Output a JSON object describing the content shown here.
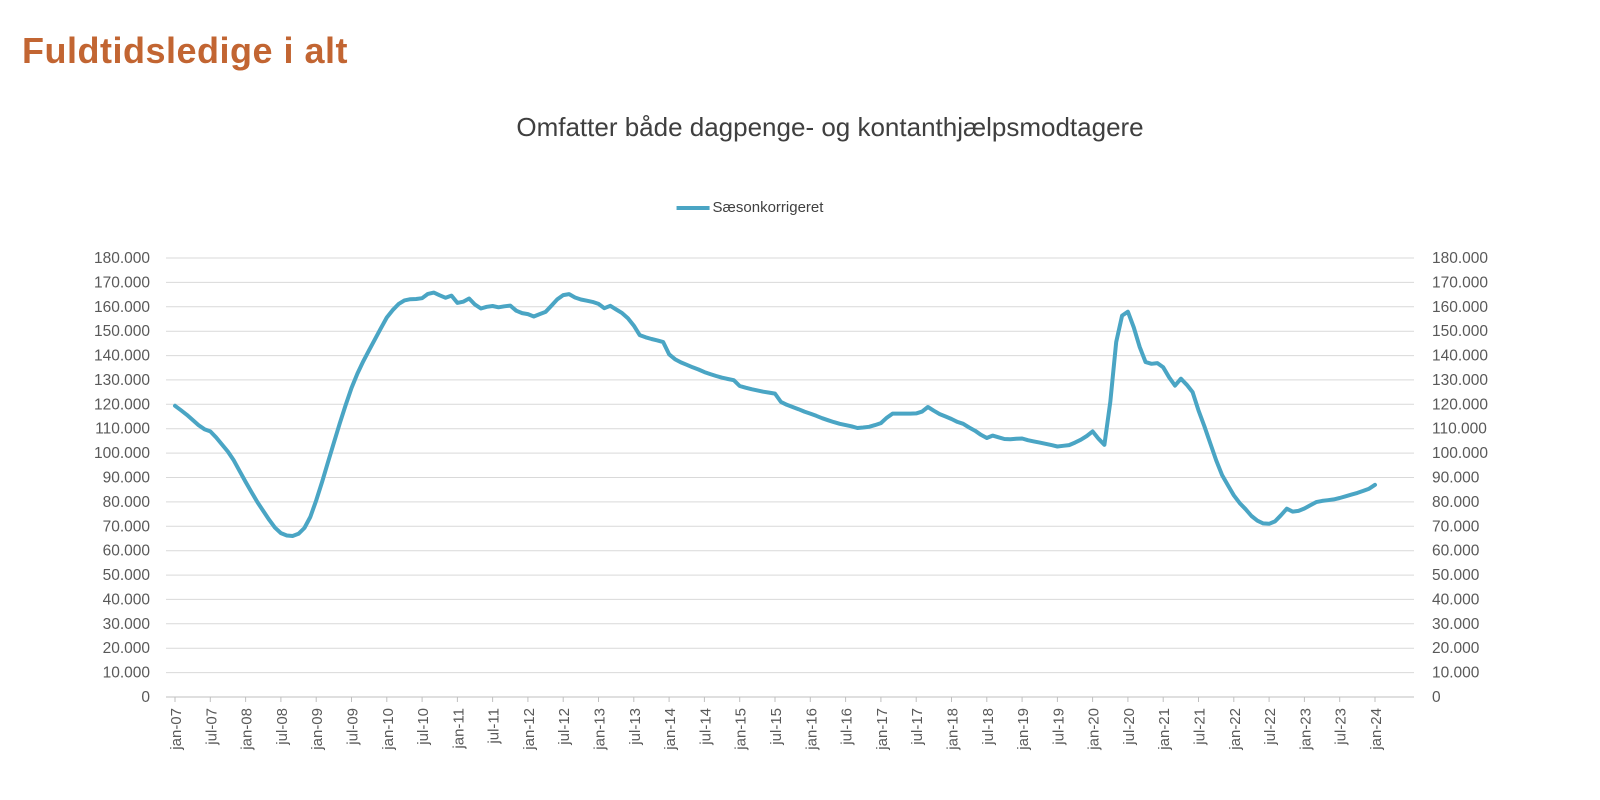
{
  "page": {
    "title": "Fuldtidsledige i alt"
  },
  "styles": {
    "title_color": "#c26532",
    "subtitle_color": "#3f3f3f",
    "axis_label_color": "#595959",
    "gridline_color": "#d9d9d9",
    "axis_line_color": "#bfbfbf",
    "series_color": "#4aa5c4"
  },
  "chart_data": {
    "type": "line",
    "title": "Omfatter både dagpenge- og kontanthjælpsmodtagere",
    "legend_position": "top",
    "grid": true,
    "x_unit": "monthly from jan-07 to jan-24",
    "x_tick_labels": [
      "jan-07",
      "jul-07",
      "jan-08",
      "jul-08",
      "jan-09",
      "jul-09",
      "jan-10",
      "jul-10",
      "jan-11",
      "jul-11",
      "jan-12",
      "jul-12",
      "jan-13",
      "jul-13",
      "jan-14",
      "jul-14",
      "jan-15",
      "jul-15",
      "jan-16",
      "jul-16",
      "jan-17",
      "jul-17",
      "jan-18",
      "jul-18",
      "jan-19",
      "jul-19",
      "jan-20",
      "jul-20",
      "jan-21",
      "jul-21",
      "jan-22",
      "jul-22",
      "jan-23",
      "jul-23",
      "jan-24"
    ],
    "ylim": [
      0,
      180000
    ],
    "y_tick_step": 10000,
    "y_axis_sides": "left and right",
    "series": [
      {
        "name": "Sæsonkorrigeret",
        "color": "#4aa5c4",
        "values": [
          119400,
          117600,
          115700,
          113600,
          111500,
          109800,
          108900,
          106400,
          103500,
          100600,
          97000,
          92600,
          88200,
          84000,
          79900,
          76300,
          72700,
          69400,
          67200,
          66200,
          66000,
          66900,
          69300,
          73800,
          80600,
          88200,
          96200,
          104200,
          112100,
          119600,
          126700,
          132600,
          137600,
          142200,
          146700,
          151200,
          155600,
          158600,
          161100,
          162600,
          163100,
          163200,
          163500,
          165300,
          165800,
          164700,
          163700,
          164600,
          161600,
          162100,
          163400,
          160900,
          159300,
          160000,
          160300,
          159800,
          160200,
          160500,
          158400,
          157400,
          157000,
          156000,
          157000,
          157900,
          160500,
          163100,
          164800,
          165200,
          163800,
          163000,
          162500,
          162000,
          161200,
          159400,
          160400,
          158900,
          157400,
          155300,
          152300,
          148400,
          147500,
          146800,
          146200,
          145500,
          140500,
          138500,
          137200,
          136200,
          135200,
          134300,
          133200,
          132400,
          131600,
          130900,
          130400,
          129900,
          127500,
          126800,
          126200,
          125700,
          125200,
          124800,
          124400,
          121000,
          119800,
          118900,
          118000,
          117000,
          116200,
          115300,
          114300,
          113500,
          112700,
          112000,
          111500,
          111000,
          110300,
          110500,
          110800,
          111500,
          112300,
          114500,
          116200,
          116200,
          116200,
          116200,
          116300,
          117000,
          118900,
          117400,
          116000,
          115000,
          114000,
          112800,
          112000,
          110500,
          109200,
          107500,
          106200,
          107200,
          106500,
          105800,
          105700,
          105900,
          106000,
          105300,
          104800,
          104300,
          103800,
          103300,
          102700,
          103000,
          103300,
          104300,
          105500,
          107000,
          108900,
          105900,
          103400,
          121000,
          145500,
          156400,
          158000,
          151500,
          143500,
          137300,
          136600,
          136900,
          135200,
          131100,
          127700,
          130500,
          128000,
          125000,
          117500,
          111000,
          104000,
          97000,
          91000,
          86800,
          82700,
          79500,
          77000,
          74200,
          72300,
          71200,
          71000,
          72000,
          74500,
          77200,
          76000,
          76300,
          77300,
          78600,
          79900,
          80400,
          80700,
          81000,
          81600,
          82300,
          83000,
          83700,
          84500,
          85400,
          87000
        ]
      }
    ]
  }
}
